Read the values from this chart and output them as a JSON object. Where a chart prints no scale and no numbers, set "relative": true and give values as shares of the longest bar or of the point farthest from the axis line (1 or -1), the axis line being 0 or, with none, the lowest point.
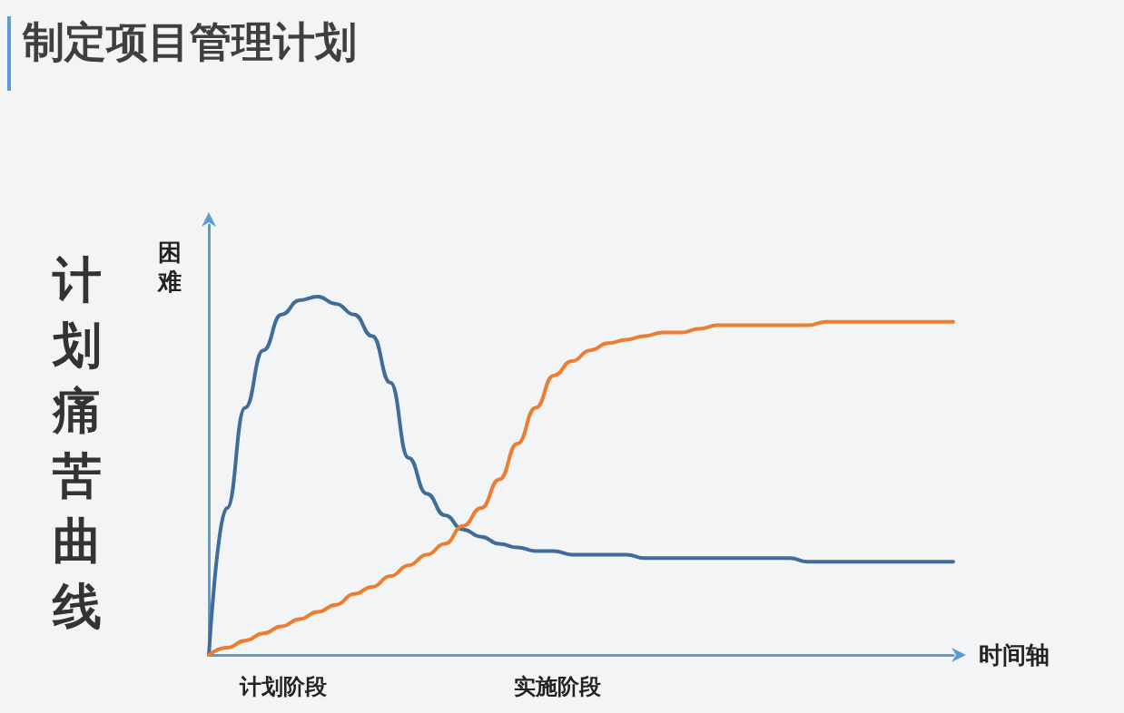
{
  "chart_data": {
    "type": "line",
    "title": "制定项目管理计划",
    "subtitle": "计划痛苦曲线",
    "ylabel": "困难",
    "xlabel": "时间轴",
    "relative": true,
    "marker": "none",
    "categories": [
      null,
      null,
      null,
      null,
      null,
      null,
      null,
      null,
      null,
      null,
      null,
      null,
      null,
      null,
      null,
      null,
      null,
      null,
      null,
      null,
      null,
      null,
      null,
      null,
      null,
      null,
      null,
      null,
      null,
      null,
      null,
      null,
      null,
      null,
      null,
      null,
      null,
      null,
      null,
      null,
      null,
      null
    ],
    "series": [
      {
        "color": "#3f6c98",
        "values": [
          0,
          0.41,
          0.69,
          0.85,
          0.95,
          0.99,
          1,
          0.98,
          0.95,
          0.89,
          0.76,
          0.55,
          0.45,
          0.39,
          0.35,
          0.33,
          0.31,
          0.3,
          0.29,
          0.29,
          0.28,
          0.28,
          0.28,
          0.28,
          0.27,
          0.27,
          0.27,
          0.27,
          0.27,
          0.27,
          0.27,
          0.27,
          0.27,
          0.26,
          0.26,
          0.26,
          0.26,
          0.26,
          0.26,
          0.26,
          0.26,
          0.26
        ]
      },
      {
        "color": "#ed7d31",
        "values": [
          0,
          0.02,
          0.04,
          0.06,
          0.08,
          0.1,
          0.12,
          0.14,
          0.17,
          0.19,
          0.22,
          0.25,
          0.28,
          0.31,
          0.36,
          0.41,
          0.49,
          0.59,
          0.69,
          0.78,
          0.82,
          0.85,
          0.87,
          0.88,
          0.89,
          0.9,
          0.9,
          0.91,
          0.92,
          0.92,
          0.92,
          0.92,
          0.92,
          0.92,
          0.93,
          0.93,
          0.93,
          0.93,
          0.93,
          0.93,
          0.93,
          0.93
        ]
      }
    ],
    "annotations": [
      "计划阶段",
      "实施阶段"
    ]
  }
}
